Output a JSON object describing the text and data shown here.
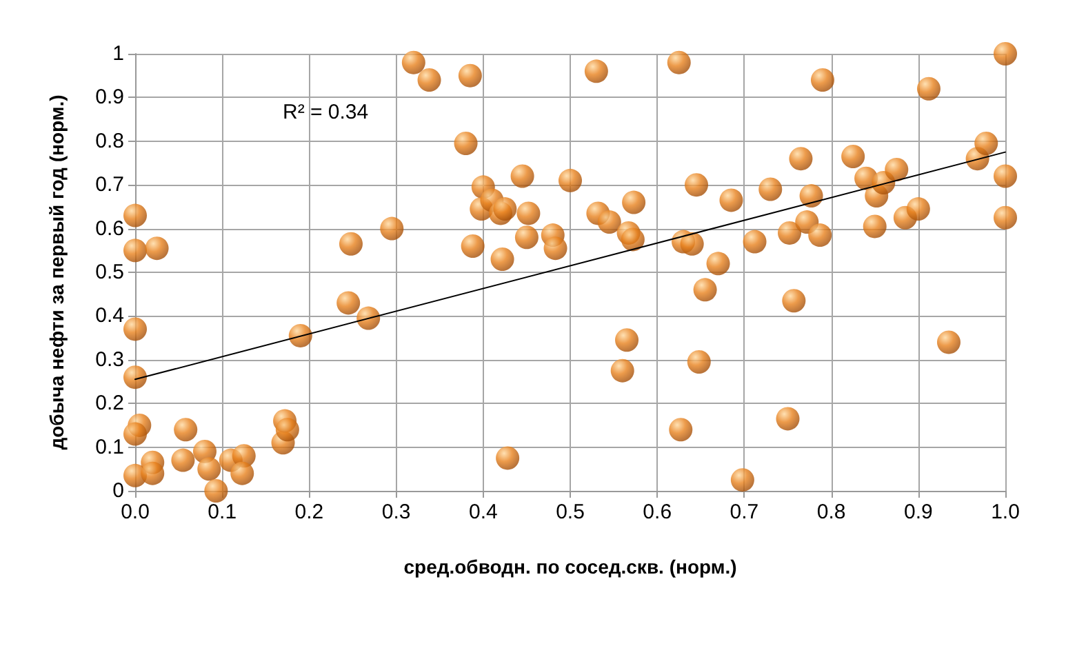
{
  "chart_data": {
    "type": "scatter",
    "xlabel": "сред.обводн. по сосед.скв. (норм.)",
    "ylabel": "добыча нефти за первый год (норм.)",
    "annotations": [
      "R² = 0.34"
    ],
    "series": [
      {
        "color": "#e8821e",
        "marker": "circle",
        "x": [
          0.0,
          0.0,
          0.025,
          0.0,
          0.0,
          0.005,
          0.0,
          0.0,
          0.02,
          0.02,
          0.055,
          0.058,
          0.08,
          0.085,
          0.093,
          0.11,
          0.125,
          0.123,
          0.17,
          0.172,
          0.175,
          0.19,
          0.245,
          0.248,
          0.268,
          0.295,
          0.32,
          0.338,
          0.385,
          0.38,
          0.388,
          0.4,
          0.398,
          0.41,
          0.42,
          0.422,
          0.425,
          0.428,
          0.445,
          0.45,
          0.452,
          0.48,
          0.483,
          0.5,
          0.53,
          0.532,
          0.545,
          0.56,
          0.565,
          0.567,
          0.572,
          0.573,
          0.625,
          0.627,
          0.63,
          0.64,
          0.645,
          0.648,
          0.655,
          0.67,
          0.685,
          0.698,
          0.712,
          0.73,
          0.75,
          0.752,
          0.757,
          0.765,
          0.772,
          0.777,
          0.787,
          0.79,
          0.825,
          0.84,
          0.85,
          0.852,
          0.86,
          0.875,
          0.885,
          0.9,
          0.912,
          0.935,
          0.968,
          0.978,
          1.0,
          1.0,
          1.0
        ],
        "values": [
          0.63,
          0.55,
          0.555,
          0.37,
          0.26,
          0.15,
          0.13,
          0.035,
          0.065,
          0.04,
          0.07,
          0.14,
          0.09,
          0.05,
          0.0,
          0.07,
          0.08,
          0.04,
          0.11,
          0.16,
          0.14,
          0.355,
          0.43,
          0.565,
          0.395,
          0.6,
          0.98,
          0.94,
          0.95,
          0.795,
          0.56,
          0.695,
          0.645,
          0.665,
          0.635,
          0.53,
          0.645,
          0.075,
          0.72,
          0.58,
          0.635,
          0.585,
          0.555,
          0.71,
          0.96,
          0.635,
          0.615,
          0.275,
          0.345,
          0.59,
          0.575,
          0.66,
          0.98,
          0.14,
          0.57,
          0.565,
          0.7,
          0.295,
          0.46,
          0.52,
          0.665,
          0.025,
          0.57,
          0.69,
          0.165,
          0.59,
          0.435,
          0.76,
          0.615,
          0.675,
          0.585,
          0.94,
          0.765,
          0.715,
          0.605,
          0.675,
          0.705,
          0.735,
          0.625,
          0.645,
          0.92,
          0.34,
          0.76,
          0.795,
          1.0,
          0.72,
          0.625
        ]
      },
      {
        "type": "line",
        "color": "#000000",
        "marker": "none",
        "line_style": "solid",
        "x": [
          0,
          1
        ],
        "values": [
          0.255,
          0.775
        ]
      }
    ],
    "xlim": [
      0,
      1
    ],
    "ylim": [
      0,
      1
    ],
    "xticks": [
      {
        "value": 0,
        "label": "0.0"
      },
      0.1,
      0.2,
      0.3,
      0.4,
      0.5,
      0.6,
      0.7,
      0.8,
      0.9,
      {
        "value": 1,
        "label": "1.0"
      }
    ],
    "yticks": [
      0,
      0.1,
      0.2,
      0.3,
      0.4,
      0.5,
      0.6,
      0.7,
      0.8,
      0.9,
      1
    ],
    "grid": true
  }
}
